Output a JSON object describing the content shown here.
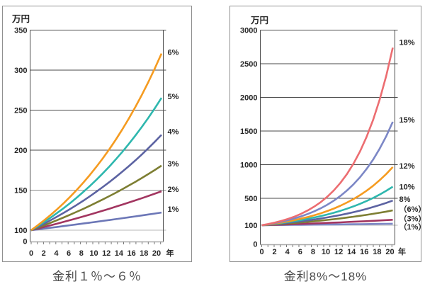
{
  "axis_colors": {
    "grid_dark": "#4a4a4a",
    "grid_mid": "#8a8a8a",
    "grid_light": "#b8b8b8",
    "baseline": "#aaaaaa",
    "minor_tick": "#777777",
    "text": "#262626",
    "panel_border": "#909090"
  },
  "chart_data": [
    {
      "type": "line",
      "title": "金利１％～６％",
      "ylabel": "万円",
      "xlabel": "年",
      "x_range": [
        0,
        20
      ],
      "x_label_values": [
        0,
        2,
        4,
        6,
        8,
        10,
        12,
        14,
        16,
        18,
        20
      ],
      "y_ticks": [
        {
          "label": "350",
          "value": 350,
          "shade": "dark"
        },
        {
          "label": "300",
          "value": 300,
          "shade": "dark"
        },
        {
          "label": "250",
          "value": 250,
          "shade": "dark"
        },
        {
          "label": "200",
          "value": 200,
          "shade": "dark"
        },
        {
          "label": "150",
          "value": 150,
          "shade": "mid"
        },
        {
          "label": "100",
          "value": 100,
          "shade": "light"
        },
        {
          "label": "0",
          "value": 0
        }
      ],
      "principal": 100,
      "series": [
        {
          "label": "6%",
          "rate_percent": 6,
          "color": "#F59B20",
          "label_dy": -2,
          "values_at_even_years": [
            100,
            112.4,
            126.2,
            141.9,
            159.4,
            179.1,
            201.2,
            226.1,
            254.0,
            285.4,
            320.7
          ]
        },
        {
          "label": "5%",
          "rate_percent": 5,
          "color": "#2EB7AE",
          "label_dy": -2,
          "values_at_even_years": [
            100,
            110.3,
            121.6,
            134.0,
            147.7,
            162.9,
            179.6,
            198.0,
            218.3,
            240.7,
            265.3
          ]
        },
        {
          "label": "4%",
          "rate_percent": 4,
          "color": "#5C63A2",
          "label_dy": -5,
          "values_at_even_years": [
            100,
            108.2,
            117.0,
            126.5,
            136.9,
            148.0,
            160.1,
            173.2,
            187.3,
            202.6,
            219.1
          ]
        },
        {
          "label": "3%",
          "rate_percent": 3,
          "color": "#7D7E32",
          "label_dy": -3,
          "values_at_even_years": [
            100,
            106.1,
            112.6,
            119.4,
            126.7,
            134.4,
            142.6,
            151.3,
            160.5,
            170.2,
            180.6
          ]
        },
        {
          "label": "2%",
          "rate_percent": 2,
          "color": "#A23560",
          "label_dy": -3,
          "values_at_even_years": [
            100,
            104.0,
            108.2,
            112.6,
            117.2,
            121.9,
            126.8,
            131.9,
            137.3,
            142.8,
            148.6
          ]
        },
        {
          "label": "1%",
          "rate_percent": 1,
          "color": "#6C77B7",
          "label_dy": -5,
          "values_at_even_years": [
            100,
            102.0,
            104.1,
            106.2,
            108.3,
            110.5,
            112.7,
            114.9,
            117.3,
            119.6,
            122.0
          ]
        }
      ]
    },
    {
      "type": "line",
      "title": "金利8%～18%",
      "ylabel": "万円",
      "xlabel": "年",
      "x_range": [
        0,
        20
      ],
      "x_label_values": [
        0,
        2,
        4,
        6,
        8,
        10,
        12,
        14,
        16,
        18,
        20
      ],
      "y_ticks": [
        {
          "label": "3000",
          "value": 3000,
          "shade": "dark"
        },
        {
          "label": "2500",
          "value": 2500,
          "shade": "dark"
        },
        {
          "label": "2000",
          "value": 2000,
          "shade": "dark"
        },
        {
          "label": "1500",
          "value": 1500,
          "shade": "dark"
        },
        {
          "label": "1000",
          "value": 1000,
          "shade": "dark"
        },
        {
          "label": "500",
          "value": 500,
          "shade": "dark"
        },
        {
          "label": "100",
          "value": 100,
          "shade": "light"
        },
        {
          "label": "0",
          "value": 0
        }
      ],
      "principal": 100,
      "series": [
        {
          "label": "18%",
          "rate_percent": 18,
          "color": "#EC6D71",
          "label_dy": -8,
          "values_at_even_years": [
            100,
            139.2,
            193.9,
            270.0,
            375.9,
            523.4,
            728.8,
            1014.7,
            1412.9,
            1967.2,
            2739.3
          ]
        },
        {
          "label": "15%",
          "rate_percent": 15,
          "color": "#7C87C6",
          "label_dy": -3,
          "values_at_even_years": [
            100,
            132.3,
            174.9,
            231.3,
            305.9,
            404.6,
            535.0,
            707.6,
            935.8,
            1237.6,
            1636.7
          ]
        },
        {
          "label": "12%",
          "rate_percent": 12,
          "color": "#F59B20",
          "label_dy": -2,
          "values_at_even_years": [
            100,
            125.4,
            157.4,
            197.4,
            247.6,
            310.6,
            389.6,
            488.7,
            613.0,
            769.0,
            964.6
          ]
        },
        {
          "label": "10%",
          "rate_percent": 10,
          "color": "#2EB7AE",
          "label_dy": 0,
          "values_at_even_years": [
            100,
            121.0,
            146.4,
            177.2,
            214.4,
            259.4,
            313.8,
            379.7,
            459.5,
            556.0,
            672.7
          ]
        },
        {
          "label": "8%",
          "rate_percent": 8,
          "color": "#5C63A2",
          "label_dy": -2,
          "values_at_even_years": [
            100,
            116.6,
            136.0,
            158.7,
            185.1,
            215.9,
            251.8,
            293.7,
            342.6,
            399.6,
            466.1
          ]
        },
        {
          "label": "（6%）",
          "rate_percent": 6,
          "color": "#7D7E32",
          "label_dy": -2,
          "values_at_even_years": [
            100,
            112.4,
            126.2,
            141.9,
            159.4,
            179.1,
            201.2,
            226.1,
            254.0,
            285.4,
            320.7
          ]
        },
        {
          "label": "（3%）",
          "rate_percent": 3,
          "color": "#A23560",
          "label_dy": -2,
          "values_at_even_years": [
            100,
            106.1,
            112.6,
            119.4,
            126.7,
            134.4,
            142.6,
            151.3,
            160.5,
            170.2,
            180.6
          ]
        },
        {
          "label": "（1%）",
          "rate_percent": 1,
          "color": "#7C87C6",
          "label_dy": 4,
          "values_at_even_years": [
            100,
            102.0,
            104.1,
            106.2,
            108.3,
            110.5,
            112.7,
            114.9,
            117.3,
            119.6,
            122.0
          ]
        }
      ]
    }
  ]
}
